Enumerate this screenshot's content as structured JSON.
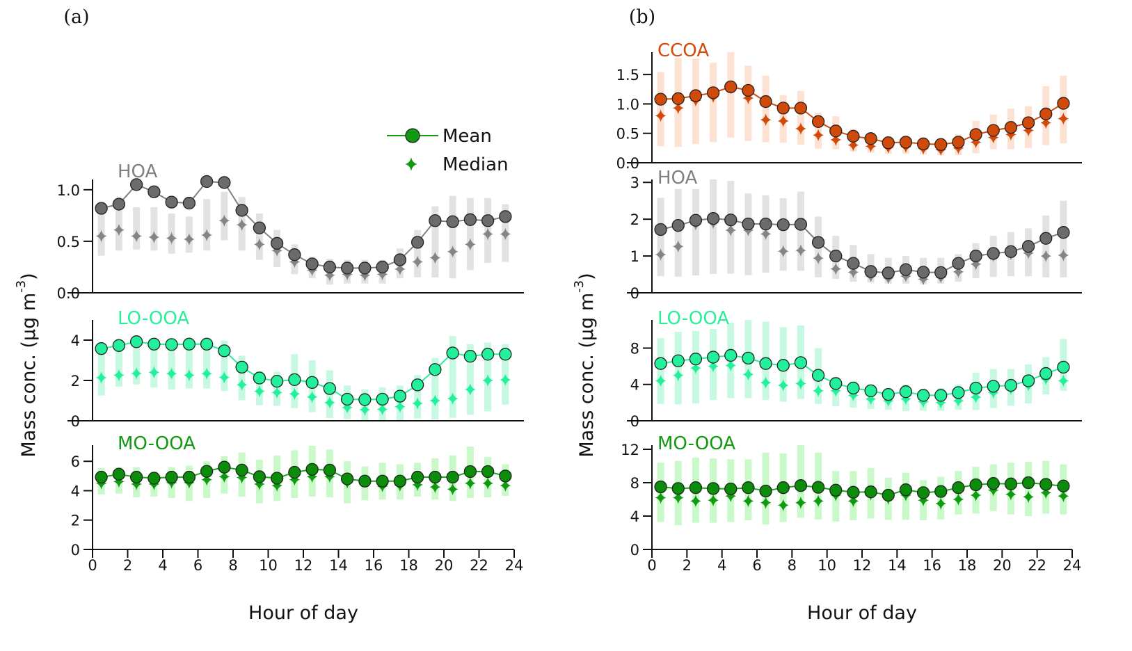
{
  "chart_data": [
    {
      "panel": "(a)",
      "type": "line",
      "xlabel": "Hour of day",
      "ylabel": {
        "main": "Mass conc. (µg m",
        "sup": "-3",
        "end": ")"
      },
      "xlim": [
        0,
        24
      ],
      "xticks": [
        "0",
        "2",
        "4",
        "6",
        "8",
        "10",
        "12",
        "14",
        "16",
        "18",
        "20",
        "22",
        "24"
      ],
      "legend": {
        "mean": "Mean",
        "median": "Median",
        "color": "#119911",
        "placement": "top-right of HOA subplot"
      },
      "x": [
        0.5,
        1.5,
        2.5,
        3.5,
        4.5,
        5.5,
        6.5,
        7.5,
        8.5,
        9.5,
        10.5,
        11.5,
        12.5,
        13.5,
        14.5,
        15.5,
        16.5,
        17.5,
        18.5,
        19.5,
        20.5,
        21.5,
        22.5,
        23.5
      ],
      "subplots": [
        {
          "name": "HOA",
          "colors": {
            "label": "#808080",
            "mean": "#6b6b6b",
            "median": "#858585",
            "range": "#e2e2e2",
            "line": "#808080"
          },
          "ylim": [
            0,
            1.1
          ],
          "yticks": [
            0,
            0.5,
            1.0
          ],
          "ytick_labels": [
            "0.0",
            "0.5",
            "1.0"
          ],
          "mean": [
            0.82,
            0.86,
            1.05,
            0.98,
            0.88,
            0.87,
            1.08,
            1.07,
            0.8,
            0.63,
            0.48,
            0.37,
            0.28,
            0.25,
            0.24,
            0.24,
            0.25,
            0.32,
            0.49,
            0.7,
            0.69,
            0.71,
            0.7,
            0.74
          ],
          "median": [
            0.55,
            0.61,
            0.55,
            0.54,
            0.53,
            0.52,
            0.56,
            0.7,
            0.66,
            0.47,
            0.41,
            0.3,
            0.22,
            0.17,
            0.18,
            0.17,
            0.18,
            0.23,
            0.3,
            0.34,
            0.4,
            0.47,
            0.57,
            0.57
          ],
          "range_low": [
            0.36,
            0.41,
            0.42,
            0.41,
            0.38,
            0.39,
            0.41,
            0.51,
            0.41,
            0.32,
            0.25,
            0.18,
            0.14,
            0.08,
            0.09,
            0.09,
            0.09,
            0.14,
            0.15,
            0.15,
            0.14,
            0.22,
            0.29,
            0.3
          ],
          "range_high": [
            0.79,
            0.8,
            0.83,
            0.83,
            0.77,
            0.74,
            0.91,
            0.98,
            0.93,
            0.77,
            0.61,
            0.47,
            0.35,
            0.33,
            0.32,
            0.32,
            0.32,
            0.43,
            0.61,
            0.84,
            0.94,
            0.92,
            0.92,
            0.86
          ]
        },
        {
          "name": "LO-OOA",
          "colors": {
            "label": "#2aee96",
            "mean": "#22f09a",
            "median": "#22f09a",
            "range": "#c6f8e2",
            "line": "#22f09a"
          },
          "ylim": [
            0,
            5
          ],
          "yticks": [
            0,
            2,
            4
          ],
          "ytick_labels": [
            "0",
            "2",
            "4"
          ],
          "mean": [
            3.58,
            3.73,
            3.92,
            3.8,
            3.78,
            3.8,
            3.8,
            3.47,
            2.66,
            2.12,
            1.96,
            2.04,
            1.9,
            1.6,
            1.07,
            1.05,
            1.07,
            1.22,
            1.78,
            2.54,
            3.36,
            3.2,
            3.3,
            3.3
          ],
          "median": [
            2.14,
            2.26,
            2.35,
            2.4,
            2.34,
            2.26,
            2.34,
            2.15,
            1.79,
            1.46,
            1.4,
            1.33,
            1.18,
            0.9,
            0.66,
            0.55,
            0.57,
            0.7,
            0.86,
            1.0,
            1.1,
            1.55,
            2.0,
            2.03
          ],
          "range_low": [
            1.25,
            1.7,
            1.8,
            1.65,
            1.55,
            1.6,
            1.6,
            1.48,
            1.02,
            0.77,
            0.74,
            0.63,
            0.43,
            0.14,
            0.09,
            0.02,
            0.02,
            0.02,
            0.12,
            0.07,
            0.15,
            0.29,
            0.47,
            0.8
          ],
          "range_high": [
            3.6,
            3.7,
            3.9,
            3.8,
            3.8,
            3.5,
            3.8,
            3.98,
            3.23,
            2.46,
            2.43,
            3.3,
            3.0,
            2.5,
            1.75,
            1.55,
            1.65,
            1.75,
            2.27,
            3.12,
            4.2,
            3.8,
            3.88,
            3.8
          ]
        },
        {
          "name": "MO-OOA",
          "colors": {
            "label": "#119911",
            "mean": "#0b8c0b",
            "median": "#119911",
            "range": "#c9f8c9",
            "line": "#1aa51a"
          },
          "ylim": [
            0,
            7.1
          ],
          "yticks": [
            0,
            2,
            4,
            6
          ],
          "ytick_labels": [
            "0",
            "2",
            "4",
            "6"
          ],
          "mean": [
            4.92,
            5.12,
            4.92,
            4.85,
            4.92,
            4.92,
            5.32,
            5.6,
            5.4,
            4.95,
            4.85,
            5.25,
            5.45,
            5.4,
            4.8,
            4.65,
            4.65,
            4.65,
            4.92,
            4.92,
            4.92,
            5.3,
            5.3,
            5.0
          ],
          "median": [
            4.5,
            4.62,
            4.45,
            4.45,
            4.55,
            4.55,
            4.75,
            4.95,
            4.9,
            4.45,
            4.35,
            4.75,
            4.95,
            4.95,
            4.55,
            4.65,
            4.3,
            4.35,
            4.4,
            4.25,
            4.1,
            4.5,
            4.5,
            4.35
          ],
          "range_low": [
            3.75,
            3.8,
            3.55,
            3.6,
            3.5,
            3.3,
            3.5,
            3.8,
            3.6,
            3.15,
            3.3,
            3.5,
            3.6,
            3.55,
            3.15,
            3.35,
            3.4,
            3.4,
            3.6,
            3.4,
            3.3,
            3.5,
            3.55,
            3.65
          ],
          "range_high": [
            5.55,
            5.6,
            5.6,
            5.3,
            5.6,
            5.7,
            6.0,
            6.35,
            6.6,
            6.1,
            6.4,
            6.75,
            7.05,
            6.8,
            6.0,
            5.65,
            5.9,
            5.8,
            5.9,
            6.2,
            6.4,
            7.0,
            6.3,
            5.8
          ]
        }
      ]
    },
    {
      "panel": "(b)",
      "type": "line",
      "xlabel": "Hour of day",
      "ylabel": {
        "main": "Mass conc. (µg m",
        "sup": "-3",
        "end": ")"
      },
      "xlim": [
        0,
        24
      ],
      "xticks": [
        "0",
        "2",
        "4",
        "6",
        "8",
        "10",
        "12",
        "14",
        "16",
        "18",
        "20",
        "22",
        "24"
      ],
      "x": [
        0.5,
        1.5,
        2.5,
        3.5,
        4.5,
        5.5,
        6.5,
        7.5,
        8.5,
        9.5,
        10.5,
        11.5,
        12.5,
        13.5,
        14.5,
        15.5,
        16.5,
        17.5,
        18.5,
        19.5,
        20.5,
        21.5,
        22.5,
        23.5
      ],
      "subplots": [
        {
          "name": "CCOA",
          "colors": {
            "label": "#d04a0a",
            "mean": "#d04a0a",
            "median": "#d04a0a",
            "range": "#fde2d3",
            "line": "#d04a0a"
          },
          "ylim": [
            0,
            1.88
          ],
          "yticks": [
            0,
            0.5,
            1.0,
            1.5
          ],
          "ytick_labels": [
            "0.0",
            "0.5",
            "1.0",
            "1.5"
          ],
          "mean": [
            1.08,
            1.09,
            1.14,
            1.19,
            1.29,
            1.23,
            1.04,
            0.93,
            0.93,
            0.7,
            0.54,
            0.45,
            0.41,
            0.34,
            0.35,
            0.32,
            0.31,
            0.35,
            0.48,
            0.55,
            0.6,
            0.68,
            0.83,
            1.01
          ],
          "median": [
            0.8,
            0.93,
            1.06,
            1.12,
            1.27,
            1.1,
            0.73,
            0.71,
            0.58,
            0.47,
            0.39,
            0.3,
            0.28,
            0.26,
            0.27,
            0.24,
            0.22,
            0.25,
            0.35,
            0.43,
            0.48,
            0.55,
            0.68,
            0.75
          ],
          "range_low": [
            0.28,
            0.27,
            0.32,
            0.35,
            0.43,
            0.37,
            0.35,
            0.34,
            0.31,
            0.24,
            0.23,
            0.19,
            0.17,
            0.15,
            0.15,
            0.14,
            0.13,
            0.13,
            0.16,
            0.23,
            0.23,
            0.25,
            0.3,
            0.33
          ],
          "range_high": [
            1.54,
            1.78,
            1.77,
            1.7,
            1.88,
            1.65,
            1.48,
            1.15,
            1.22,
            0.85,
            0.79,
            0.58,
            0.5,
            0.45,
            0.45,
            0.43,
            0.42,
            0.48,
            0.71,
            0.82,
            0.92,
            0.96,
            1.3,
            1.48
          ]
        },
        {
          "name": "HOA",
          "colors": {
            "label": "#808080",
            "mean": "#6b6b6b",
            "median": "#858585",
            "range": "#e2e2e2",
            "line": "#808080"
          },
          "ylim": [
            0,
            3.08
          ],
          "yticks": [
            0,
            1,
            2,
            3
          ],
          "ytick_labels": [
            "0",
            "1",
            "2",
            "3"
          ],
          "mean": [
            1.72,
            1.83,
            1.97,
            2.02,
            1.98,
            1.87,
            1.87,
            1.85,
            1.86,
            1.37,
            1.0,
            0.8,
            0.58,
            0.54,
            0.63,
            0.56,
            0.55,
            0.8,
            1.0,
            1.07,
            1.12,
            1.26,
            1.48,
            1.64
          ],
          "median": [
            1.04,
            1.26,
            1.86,
            1.9,
            1.7,
            1.7,
            1.6,
            1.13,
            1.15,
            0.94,
            0.65,
            0.56,
            0.45,
            0.4,
            0.45,
            0.37,
            0.42,
            0.57,
            0.78,
            1.0,
            1.05,
            1.08,
            1.0,
            1.02
          ],
          "range_low": [
            0.45,
            0.44,
            0.47,
            0.51,
            0.52,
            0.48,
            0.55,
            0.6,
            0.6,
            0.42,
            0.38,
            0.3,
            0.28,
            0.25,
            0.25,
            0.23,
            0.25,
            0.3,
            0.4,
            0.43,
            0.45,
            0.45,
            0.42,
            0.42
          ],
          "range_high": [
            2.58,
            2.82,
            2.82,
            3.08,
            3.04,
            2.7,
            2.65,
            2.57,
            2.75,
            2.07,
            1.55,
            1.3,
            1.05,
            0.95,
            1.0,
            0.95,
            0.95,
            1.05,
            1.35,
            1.55,
            1.65,
            1.75,
            2.1,
            2.5
          ]
        },
        {
          "name": "LO-OOA",
          "colors": {
            "label": "#2aee96",
            "mean": "#22f09a",
            "median": "#22f09a",
            "range": "#c6f8e2",
            "line": "#22f09a"
          },
          "ylim": [
            0,
            11.1
          ],
          "yticks": [
            0,
            4,
            8
          ],
          "ytick_labels": [
            "0",
            "4",
            "8"
          ],
          "mean": [
            6.3,
            6.6,
            6.8,
            7.0,
            7.2,
            6.9,
            6.3,
            6.1,
            6.4,
            5.0,
            4.1,
            3.6,
            3.3,
            2.9,
            3.2,
            2.8,
            2.8,
            3.1,
            3.6,
            3.8,
            3.9,
            4.4,
            5.2,
            5.9
          ],
          "median": [
            4.4,
            5.0,
            5.8,
            6.0,
            6.1,
            5.1,
            4.2,
            3.9,
            4.1,
            3.3,
            3.3,
            2.8,
            2.4,
            2.2,
            2.4,
            2.1,
            2.0,
            2.2,
            2.6,
            3.1,
            3.5,
            3.9,
            4.6,
            4.4
          ],
          "range_low": [
            1.85,
            1.8,
            1.9,
            2.3,
            2.5,
            2.5,
            2.3,
            2.1,
            2.4,
            1.85,
            1.6,
            1.45,
            1.3,
            1.2,
            1.05,
            1.1,
            1.1,
            1.2,
            1.2,
            1.4,
            1.65,
            1.9,
            2.9,
            3.3
          ],
          "range_high": [
            9.1,
            9.8,
            9.9,
            10.1,
            10.8,
            11.1,
            10.9,
            10.3,
            10.5,
            8.0,
            4.8,
            4.4,
            4.0,
            3.6,
            4.0,
            3.5,
            3.6,
            4.0,
            5.3,
            5.7,
            5.7,
            6.2,
            7.0,
            9.0
          ]
        },
        {
          "name": "MO-OOA",
          "colors": {
            "label": "#119911",
            "mean": "#0b8c0b",
            "median": "#119911",
            "range": "#c9f8c9",
            "line": "#1aa51a"
          },
          "ylim": [
            0,
            12.5
          ],
          "yticks": [
            0,
            4,
            8,
            12
          ],
          "ytick_labels": [
            "0",
            "4",
            "8",
            "12"
          ],
          "mean": [
            7.5,
            7.3,
            7.4,
            7.3,
            7.25,
            7.4,
            7.0,
            7.4,
            7.65,
            7.45,
            7.1,
            6.85,
            6.9,
            6.5,
            7.15,
            6.8,
            6.95,
            7.4,
            7.75,
            7.9,
            7.85,
            8.0,
            7.8,
            7.6
          ],
          "median": [
            6.2,
            6.2,
            5.8,
            5.9,
            6.4,
            5.8,
            5.6,
            5.3,
            5.6,
            5.8,
            6.5,
            5.8,
            6.6,
            6.1,
            6.5,
            5.9,
            5.5,
            6.0,
            6.5,
            7.1,
            6.6,
            6.3,
            6.8,
            6.4
          ],
          "range_low": [
            3.3,
            2.9,
            3.2,
            3.2,
            3.3,
            3.5,
            3.0,
            3.3,
            3.8,
            3.6,
            3.35,
            3.5,
            3.7,
            3.55,
            3.55,
            3.5,
            3.6,
            4.2,
            4.3,
            4.6,
            4.2,
            4.0,
            4.3,
            4.2
          ],
          "range_high": [
            10.4,
            10.6,
            11.0,
            10.9,
            10.8,
            10.8,
            11.6,
            11.5,
            12.5,
            11.6,
            9.4,
            9.4,
            9.75,
            8.6,
            9.2,
            8.3,
            8.7,
            9.4,
            9.9,
            10.2,
            10.4,
            10.5,
            10.6,
            10.2
          ]
        }
      ]
    }
  ]
}
